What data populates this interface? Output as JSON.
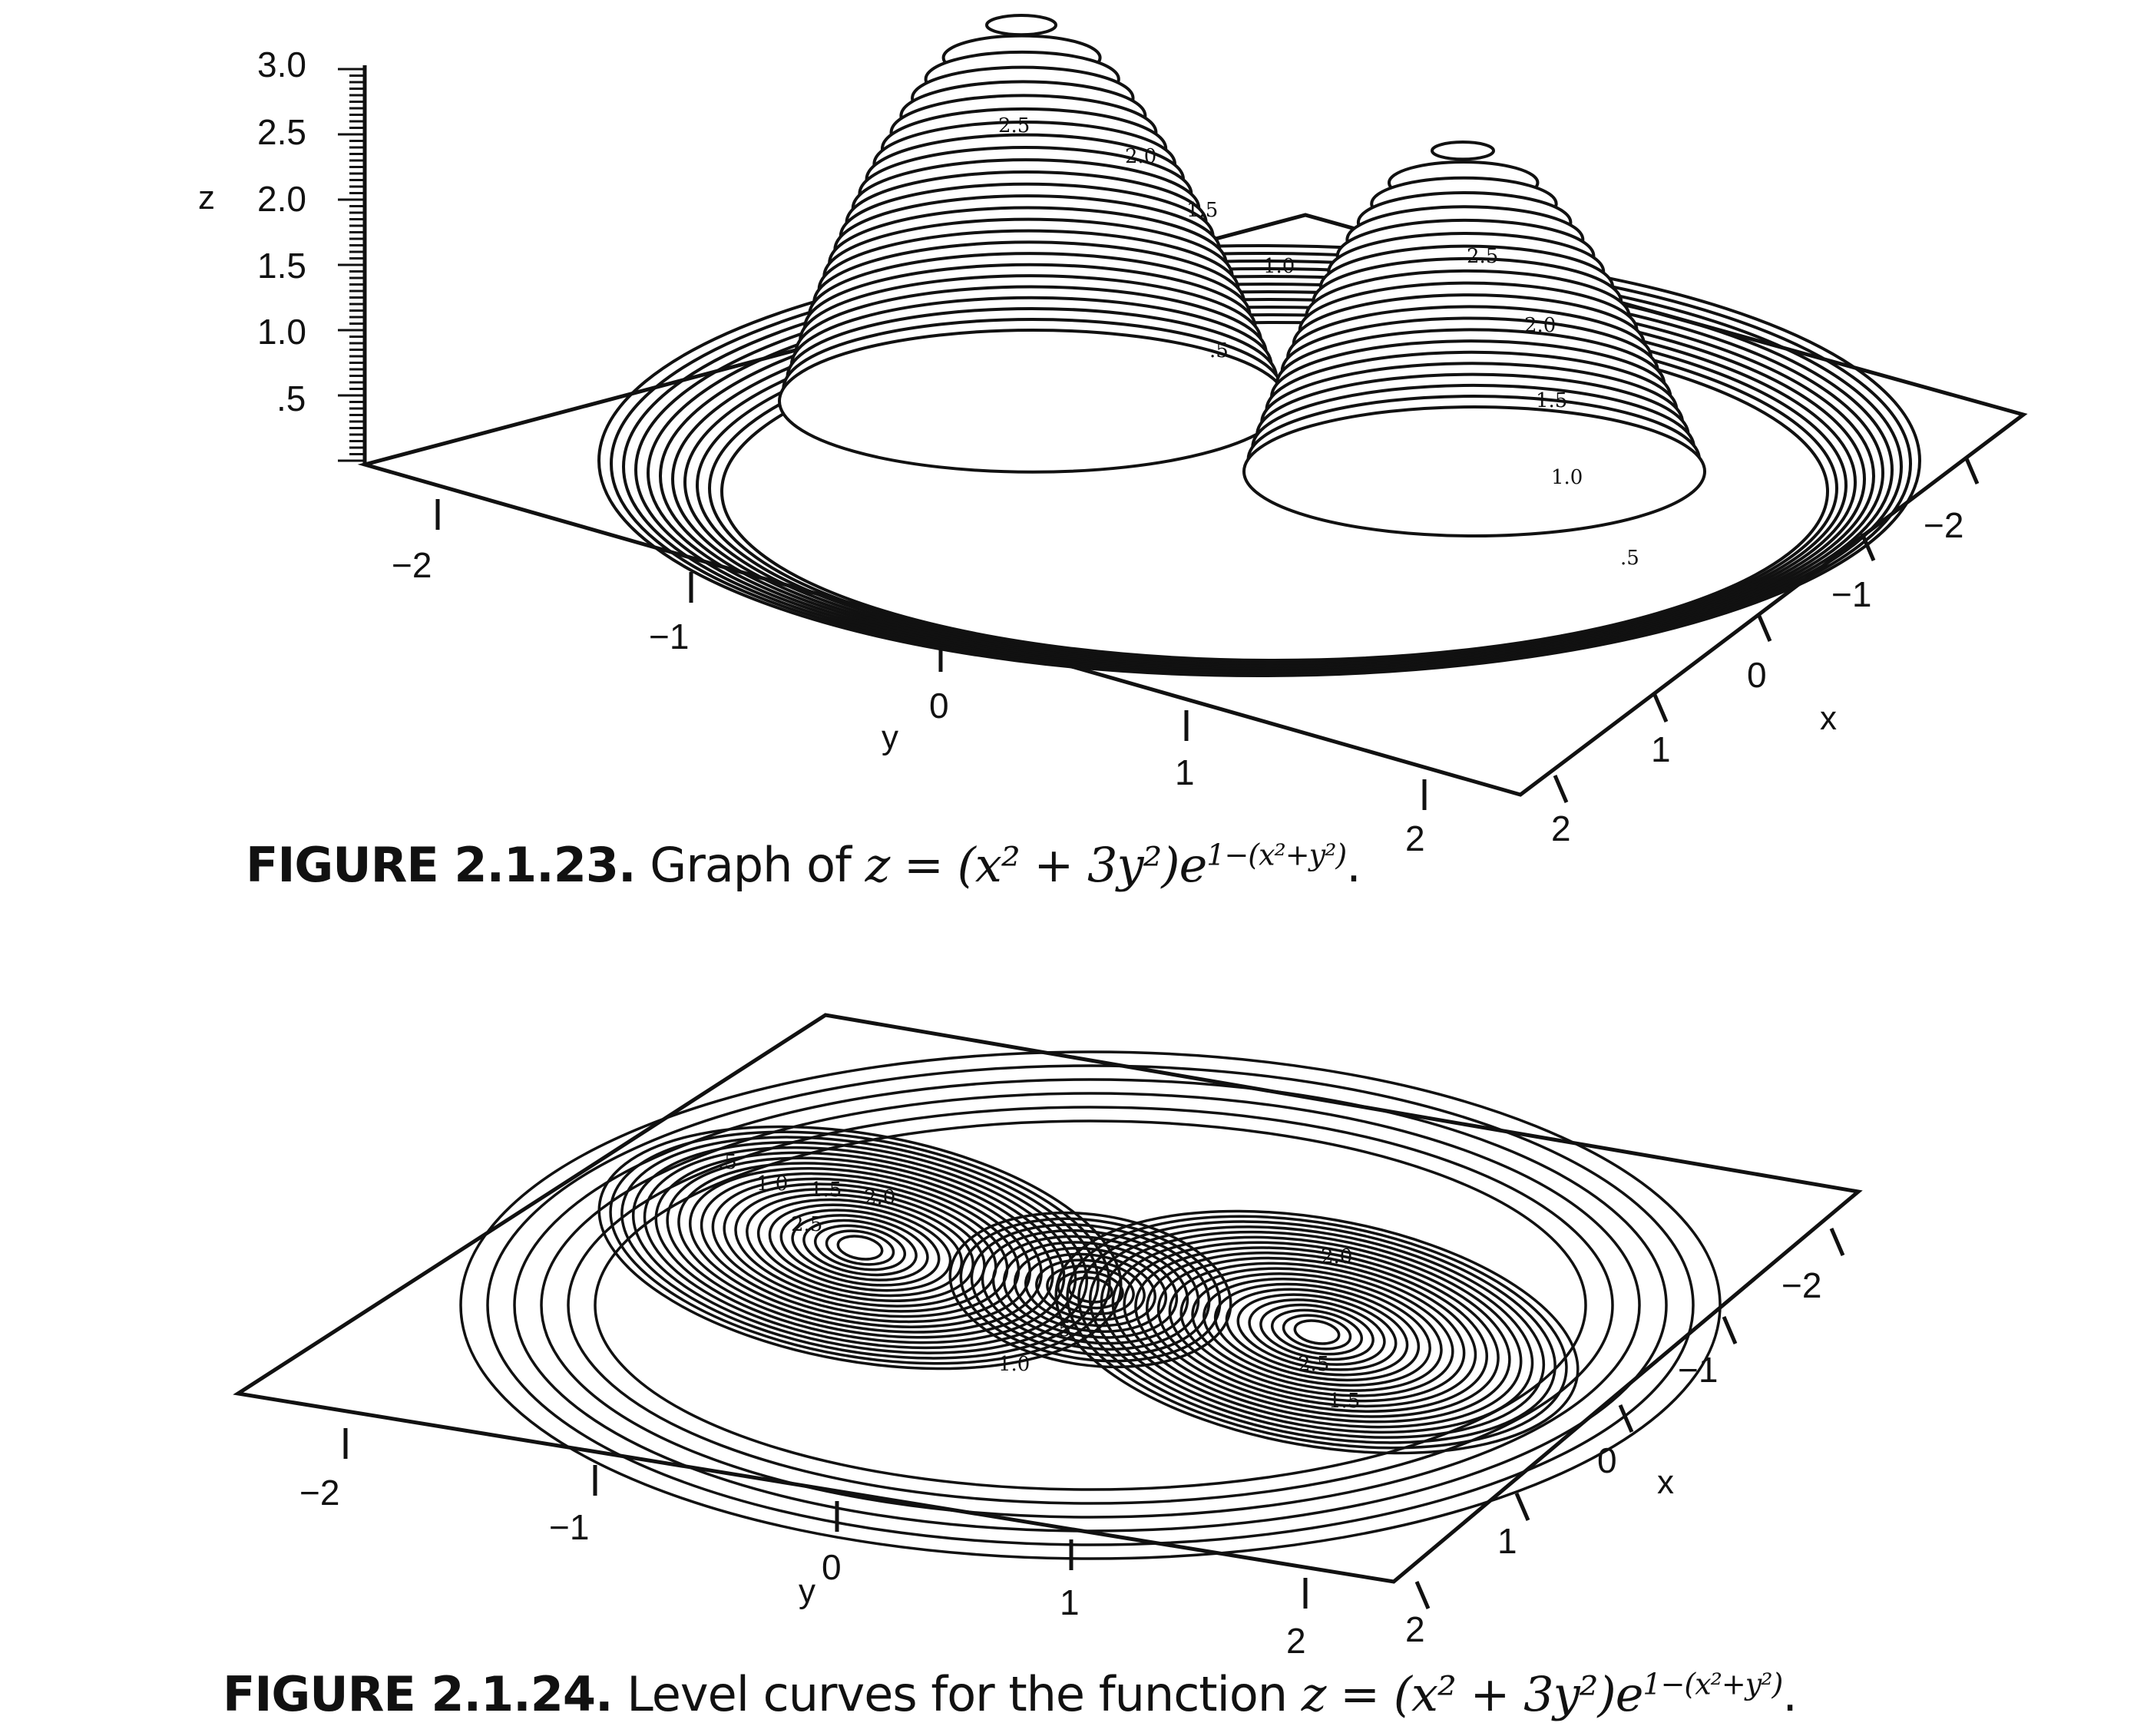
{
  "figures": [
    {
      "id": "fig-2-1-23",
      "caption_label": "FIGURE 2.1.23.",
      "caption_text": "Graph of",
      "caption_formula": "z = (x² + 3y²)e",
      "caption_exponent": "1−(x²+y²)",
      "z_axis_label": "z",
      "z_ticks": [
        "3.0",
        "2.5",
        "2.0",
        "1.5",
        "1.0",
        ".5"
      ],
      "x_axis_label": "x",
      "x_ticks": [
        "−2",
        "−1",
        "0",
        "1",
        "2"
      ],
      "y_axis_label": "y",
      "y_ticks": [
        "−2",
        "−1",
        "0",
        "1",
        "2"
      ],
      "contour_labels": [
        "2.5",
        "2.0",
        "1.5",
        "1.0",
        ".5"
      ]
    },
    {
      "id": "fig-2-1-24",
      "caption_label": "FIGURE 2.1.24.",
      "caption_text": "Level curves for the function",
      "caption_formula": "z = (x² + 3y²)e",
      "caption_exponent": "1−(x²+y²)",
      "x_axis_label": "x",
      "x_ticks": [
        "−2",
        "−1",
        "0",
        "1",
        "2"
      ],
      "y_axis_label": "y",
      "y_ticks": [
        "−2",
        "−1",
        "0",
        "1",
        "2"
      ],
      "contour_labels": [
        ".5",
        "1.0",
        "1.5",
        "2.0",
        "2.5",
        "2.0",
        ".5",
        "1.0",
        "2.5",
        "1.5"
      ]
    }
  ]
}
